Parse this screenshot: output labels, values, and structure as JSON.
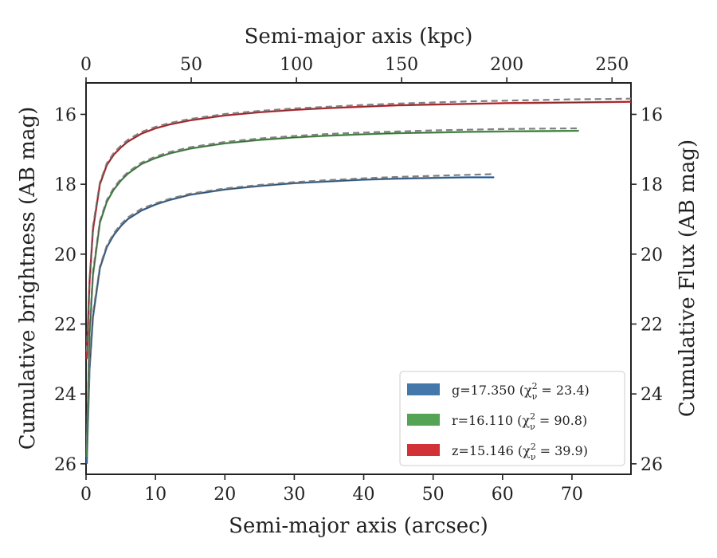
{
  "chart_data": {
    "type": "line",
    "xlabel": "Semi-major axis (arcsec)",
    "x2label": "Semi-major axis (kpc)",
    "ylabel": "Cumulative brightness (AB mag)",
    "y2label": "Cumulative Flux (AB mag)",
    "xlim": [
      0,
      78.5
    ],
    "x2lim": [
      0,
      259
    ],
    "ylim": [
      26.3,
      15.1
    ],
    "y_inverted": true,
    "xticks": [
      "0",
      "10",
      "20",
      "30",
      "40",
      "50",
      "60",
      "70"
    ],
    "x2ticks": [
      "0",
      "50",
      "100",
      "150",
      "200",
      "250"
    ],
    "yticks": [
      "16",
      "18",
      "20",
      "22",
      "24",
      "26"
    ],
    "y2ticks": [
      "16",
      "18",
      "20",
      "22",
      "24",
      "26"
    ],
    "grid": false,
    "legend_position": "bottom-right",
    "series": [
      {
        "name": "g=17.350 (χ²ᵥ = 23.4)",
        "legend_label": "g=17.350 (χ",
        "legend_sup": "2",
        "legend_sub": "ν",
        "legend_rest": " = 23.4)",
        "color": "#4477AA",
        "x": [
          0.1,
          0.5,
          1,
          2,
          3,
          4,
          5,
          6,
          8,
          10,
          12,
          15,
          20,
          25,
          30,
          35,
          40,
          45,
          50,
          55,
          58.8
        ],
        "y": [
          26.0,
          23.3,
          21.8,
          20.4,
          19.8,
          19.45,
          19.2,
          19.0,
          18.75,
          18.58,
          18.45,
          18.3,
          18.15,
          18.05,
          17.97,
          17.92,
          17.87,
          17.84,
          17.82,
          17.8,
          17.8
        ],
        "model_x": [
          0.1,
          0.5,
          1,
          2,
          3,
          4,
          5,
          6,
          8,
          10,
          12,
          15,
          20,
          25,
          30,
          35,
          40,
          45,
          50,
          55,
          58.8
        ],
        "model_y": [
          25.8,
          23.2,
          21.7,
          20.35,
          19.75,
          19.4,
          19.15,
          18.95,
          18.7,
          18.55,
          18.42,
          18.27,
          18.12,
          18.02,
          17.94,
          17.88,
          17.83,
          17.79,
          17.76,
          17.73,
          17.71
        ]
      },
      {
        "name": "r=16.110 (χ²ᵥ = 90.8)",
        "legend_label": "r=16.110 (χ",
        "legend_sup": "2",
        "legend_sub": "ν",
        "legend_rest": " = 90.8)",
        "color": "#55A355",
        "x": [
          0.1,
          0.5,
          1,
          2,
          3,
          4,
          5,
          6,
          8,
          10,
          12,
          15,
          20,
          25,
          30,
          35,
          40,
          45,
          50,
          55,
          60,
          65,
          71
        ],
        "y": [
          25.8,
          22.3,
          20.6,
          19.1,
          18.5,
          18.15,
          17.9,
          17.7,
          17.42,
          17.25,
          17.12,
          16.98,
          16.83,
          16.73,
          16.66,
          16.61,
          16.57,
          16.54,
          16.52,
          16.5,
          16.49,
          16.48,
          16.47
        ],
        "model_x": [
          0.1,
          0.5,
          1,
          2,
          3,
          4,
          5,
          6,
          8,
          10,
          12,
          15,
          20,
          25,
          30,
          35,
          40,
          45,
          50,
          55,
          60,
          65,
          71
        ],
        "model_y": [
          25.6,
          22.2,
          20.5,
          19.05,
          18.45,
          18.1,
          17.85,
          17.66,
          17.38,
          17.21,
          17.08,
          16.94,
          16.79,
          16.69,
          16.62,
          16.56,
          16.52,
          16.49,
          16.46,
          16.44,
          16.42,
          16.41,
          16.4
        ]
      },
      {
        "name": "z=15.146 (χ²ᵥ = 39.9)",
        "legend_label": "z=15.146 (χ",
        "legend_sup": "2",
        "legend_sub": "ν",
        "legend_rest": " = 39.9)",
        "color": "#D03238",
        "x": [
          0.1,
          0.5,
          1,
          2,
          3,
          4,
          5,
          6,
          8,
          10,
          12,
          15,
          20,
          25,
          30,
          35,
          40,
          45,
          50,
          55,
          60,
          65,
          70,
          75,
          78.5
        ],
        "y": [
          23.0,
          20.8,
          19.3,
          18.0,
          17.45,
          17.15,
          16.95,
          16.78,
          16.55,
          16.4,
          16.29,
          16.17,
          16.03,
          15.94,
          15.87,
          15.82,
          15.78,
          15.74,
          15.72,
          15.7,
          15.68,
          15.67,
          15.66,
          15.65,
          15.64
        ],
        "model_x": [
          0.1,
          0.5,
          1,
          2,
          3,
          4,
          5,
          6,
          8,
          10,
          12,
          15,
          20,
          25,
          30,
          35,
          40,
          45,
          50,
          55,
          60,
          65,
          70,
          75,
          78.5
        ],
        "model_y": [
          22.8,
          20.7,
          19.2,
          17.95,
          17.4,
          17.1,
          16.9,
          16.73,
          16.5,
          16.36,
          16.25,
          16.13,
          15.99,
          15.9,
          15.83,
          15.78,
          15.73,
          15.69,
          15.66,
          15.63,
          15.61,
          15.59,
          15.57,
          15.56,
          15.55
        ]
      }
    ],
    "model_line": {
      "color": "#808080",
      "style": "dashed"
    }
  }
}
